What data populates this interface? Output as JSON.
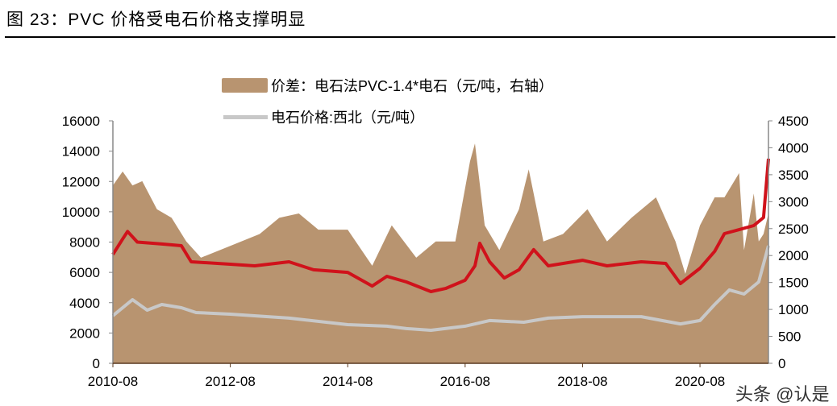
{
  "title": "图 23：PVC 价格受电石价格支撑明显",
  "watermark": "头条 @认是",
  "chart_data": {
    "type": "line+area",
    "title": "",
    "left_axis": {
      "ylim": [
        0,
        16000
      ],
      "ticks": [
        0,
        2000,
        4000,
        6000,
        8000,
        10000,
        12000,
        14000,
        16000
      ]
    },
    "right_axis": {
      "ylim": [
        0,
        4500
      ],
      "ticks": [
        0,
        500,
        1000,
        1500,
        2000,
        2500,
        3000,
        3500,
        4000,
        4500
      ]
    },
    "x_ticks": [
      "2010-08",
      "2012-08",
      "2014-08",
      "2016-08",
      "2018-08",
      "2020-08"
    ],
    "x_range": [
      "2010-08",
      "2021-10"
    ],
    "grid": false,
    "legend_placement": "top-center",
    "series": [
      {
        "name": "价差：电石法PVC-1.4*电石（元/吨，右轴）",
        "type": "area",
        "axis": "right",
        "color": "#b89470",
        "points": [
          [
            "2010-08",
            3300
          ],
          [
            "2010-10",
            3560
          ],
          [
            "2010-12",
            3300
          ],
          [
            "2011-02",
            3380
          ],
          [
            "2011-05",
            2860
          ],
          [
            "2011-08",
            2700
          ],
          [
            "2011-11",
            2260
          ],
          [
            "2012-02",
            1960
          ],
          [
            "2012-08",
            2180
          ],
          [
            "2013-02",
            2400
          ],
          [
            "2013-06",
            2700
          ],
          [
            "2013-10",
            2780
          ],
          [
            "2014-02",
            2480
          ],
          [
            "2014-08",
            2480
          ],
          [
            "2015-01",
            1810
          ],
          [
            "2015-05",
            2560
          ],
          [
            "2015-10",
            1960
          ],
          [
            "2016-02",
            2260
          ],
          [
            "2016-06",
            2260
          ],
          [
            "2016-09",
            3750
          ],
          [
            "2016-10",
            4080
          ],
          [
            "2016-12",
            2560
          ],
          [
            "2017-03",
            2100
          ],
          [
            "2017-07",
            2860
          ],
          [
            "2017-09",
            3600
          ],
          [
            "2017-12",
            2260
          ],
          [
            "2018-04",
            2400
          ],
          [
            "2018-09",
            2860
          ],
          [
            "2019-01",
            2260
          ],
          [
            "2019-06",
            2700
          ],
          [
            "2019-11",
            3080
          ],
          [
            "2020-03",
            2260
          ],
          [
            "2020-05",
            1660
          ],
          [
            "2020-08",
            2560
          ],
          [
            "2020-11",
            3080
          ],
          [
            "2021-01",
            3080
          ],
          [
            "2021-04",
            3530
          ],
          [
            "2021-05",
            2100
          ],
          [
            "2021-07",
            3150
          ],
          [
            "2021-08",
            2260
          ],
          [
            "2021-09",
            2400
          ],
          [
            "2021-10",
            2780
          ]
        ]
      },
      {
        "name": "电石价格:西北（元/吨）",
        "type": "line",
        "axis": "left",
        "color": "#c8c8c8",
        "points": [
          [
            "2010-08",
            3140
          ],
          [
            "2010-12",
            4200
          ],
          [
            "2011-03",
            3510
          ],
          [
            "2011-06",
            3880
          ],
          [
            "2011-10",
            3670
          ],
          [
            "2012-01",
            3350
          ],
          [
            "2012-08",
            3240
          ],
          [
            "2013-08",
            2980
          ],
          [
            "2014-08",
            2550
          ],
          [
            "2015-04",
            2450
          ],
          [
            "2015-08",
            2290
          ],
          [
            "2016-01",
            2180
          ],
          [
            "2016-08",
            2450
          ],
          [
            "2017-01",
            2820
          ],
          [
            "2017-08",
            2710
          ],
          [
            "2018-01",
            2980
          ],
          [
            "2018-08",
            3080
          ],
          [
            "2019-08",
            3080
          ],
          [
            "2020-04",
            2600
          ],
          [
            "2020-08",
            2820
          ],
          [
            "2020-11",
            3880
          ],
          [
            "2021-02",
            4840
          ],
          [
            "2021-05",
            4570
          ],
          [
            "2021-08",
            5370
          ],
          [
            "2021-10",
            7760
          ]
        ]
      },
      {
        "type": "line",
        "axis": "left",
        "color": "#d0121b",
        "points": [
          [
            "2010-08",
            7180
          ],
          [
            "2010-10",
            8200
          ],
          [
            "2010-11",
            8700
          ],
          [
            "2011-01",
            8000
          ],
          [
            "2011-06",
            7870
          ],
          [
            "2011-10",
            7760
          ],
          [
            "2011-12",
            6700
          ],
          [
            "2012-08",
            6540
          ],
          [
            "2013-01",
            6430
          ],
          [
            "2013-08",
            6700
          ],
          [
            "2014-01",
            6170
          ],
          [
            "2014-08",
            6000
          ],
          [
            "2015-01",
            5100
          ],
          [
            "2015-04",
            5740
          ],
          [
            "2015-08",
            5370
          ],
          [
            "2016-01",
            4730
          ],
          [
            "2016-04",
            4940
          ],
          [
            "2016-08",
            5480
          ],
          [
            "2016-10",
            6430
          ],
          [
            "2016-11",
            7920
          ],
          [
            "2017-01",
            6700
          ],
          [
            "2017-04",
            5630
          ],
          [
            "2017-07",
            6170
          ],
          [
            "2017-10",
            7500
          ],
          [
            "2018-01",
            6430
          ],
          [
            "2018-08",
            6800
          ],
          [
            "2019-01",
            6430
          ],
          [
            "2019-08",
            6700
          ],
          [
            "2020-01",
            6590
          ],
          [
            "2020-04",
            5260
          ],
          [
            "2020-08",
            6270
          ],
          [
            "2020-11",
            7390
          ],
          [
            "2021-01",
            8560
          ],
          [
            "2021-04",
            8820
          ],
          [
            "2021-07",
            9090
          ],
          [
            "2021-09",
            9620
          ],
          [
            "2021-10",
            13500
          ]
        ]
      }
    ]
  }
}
